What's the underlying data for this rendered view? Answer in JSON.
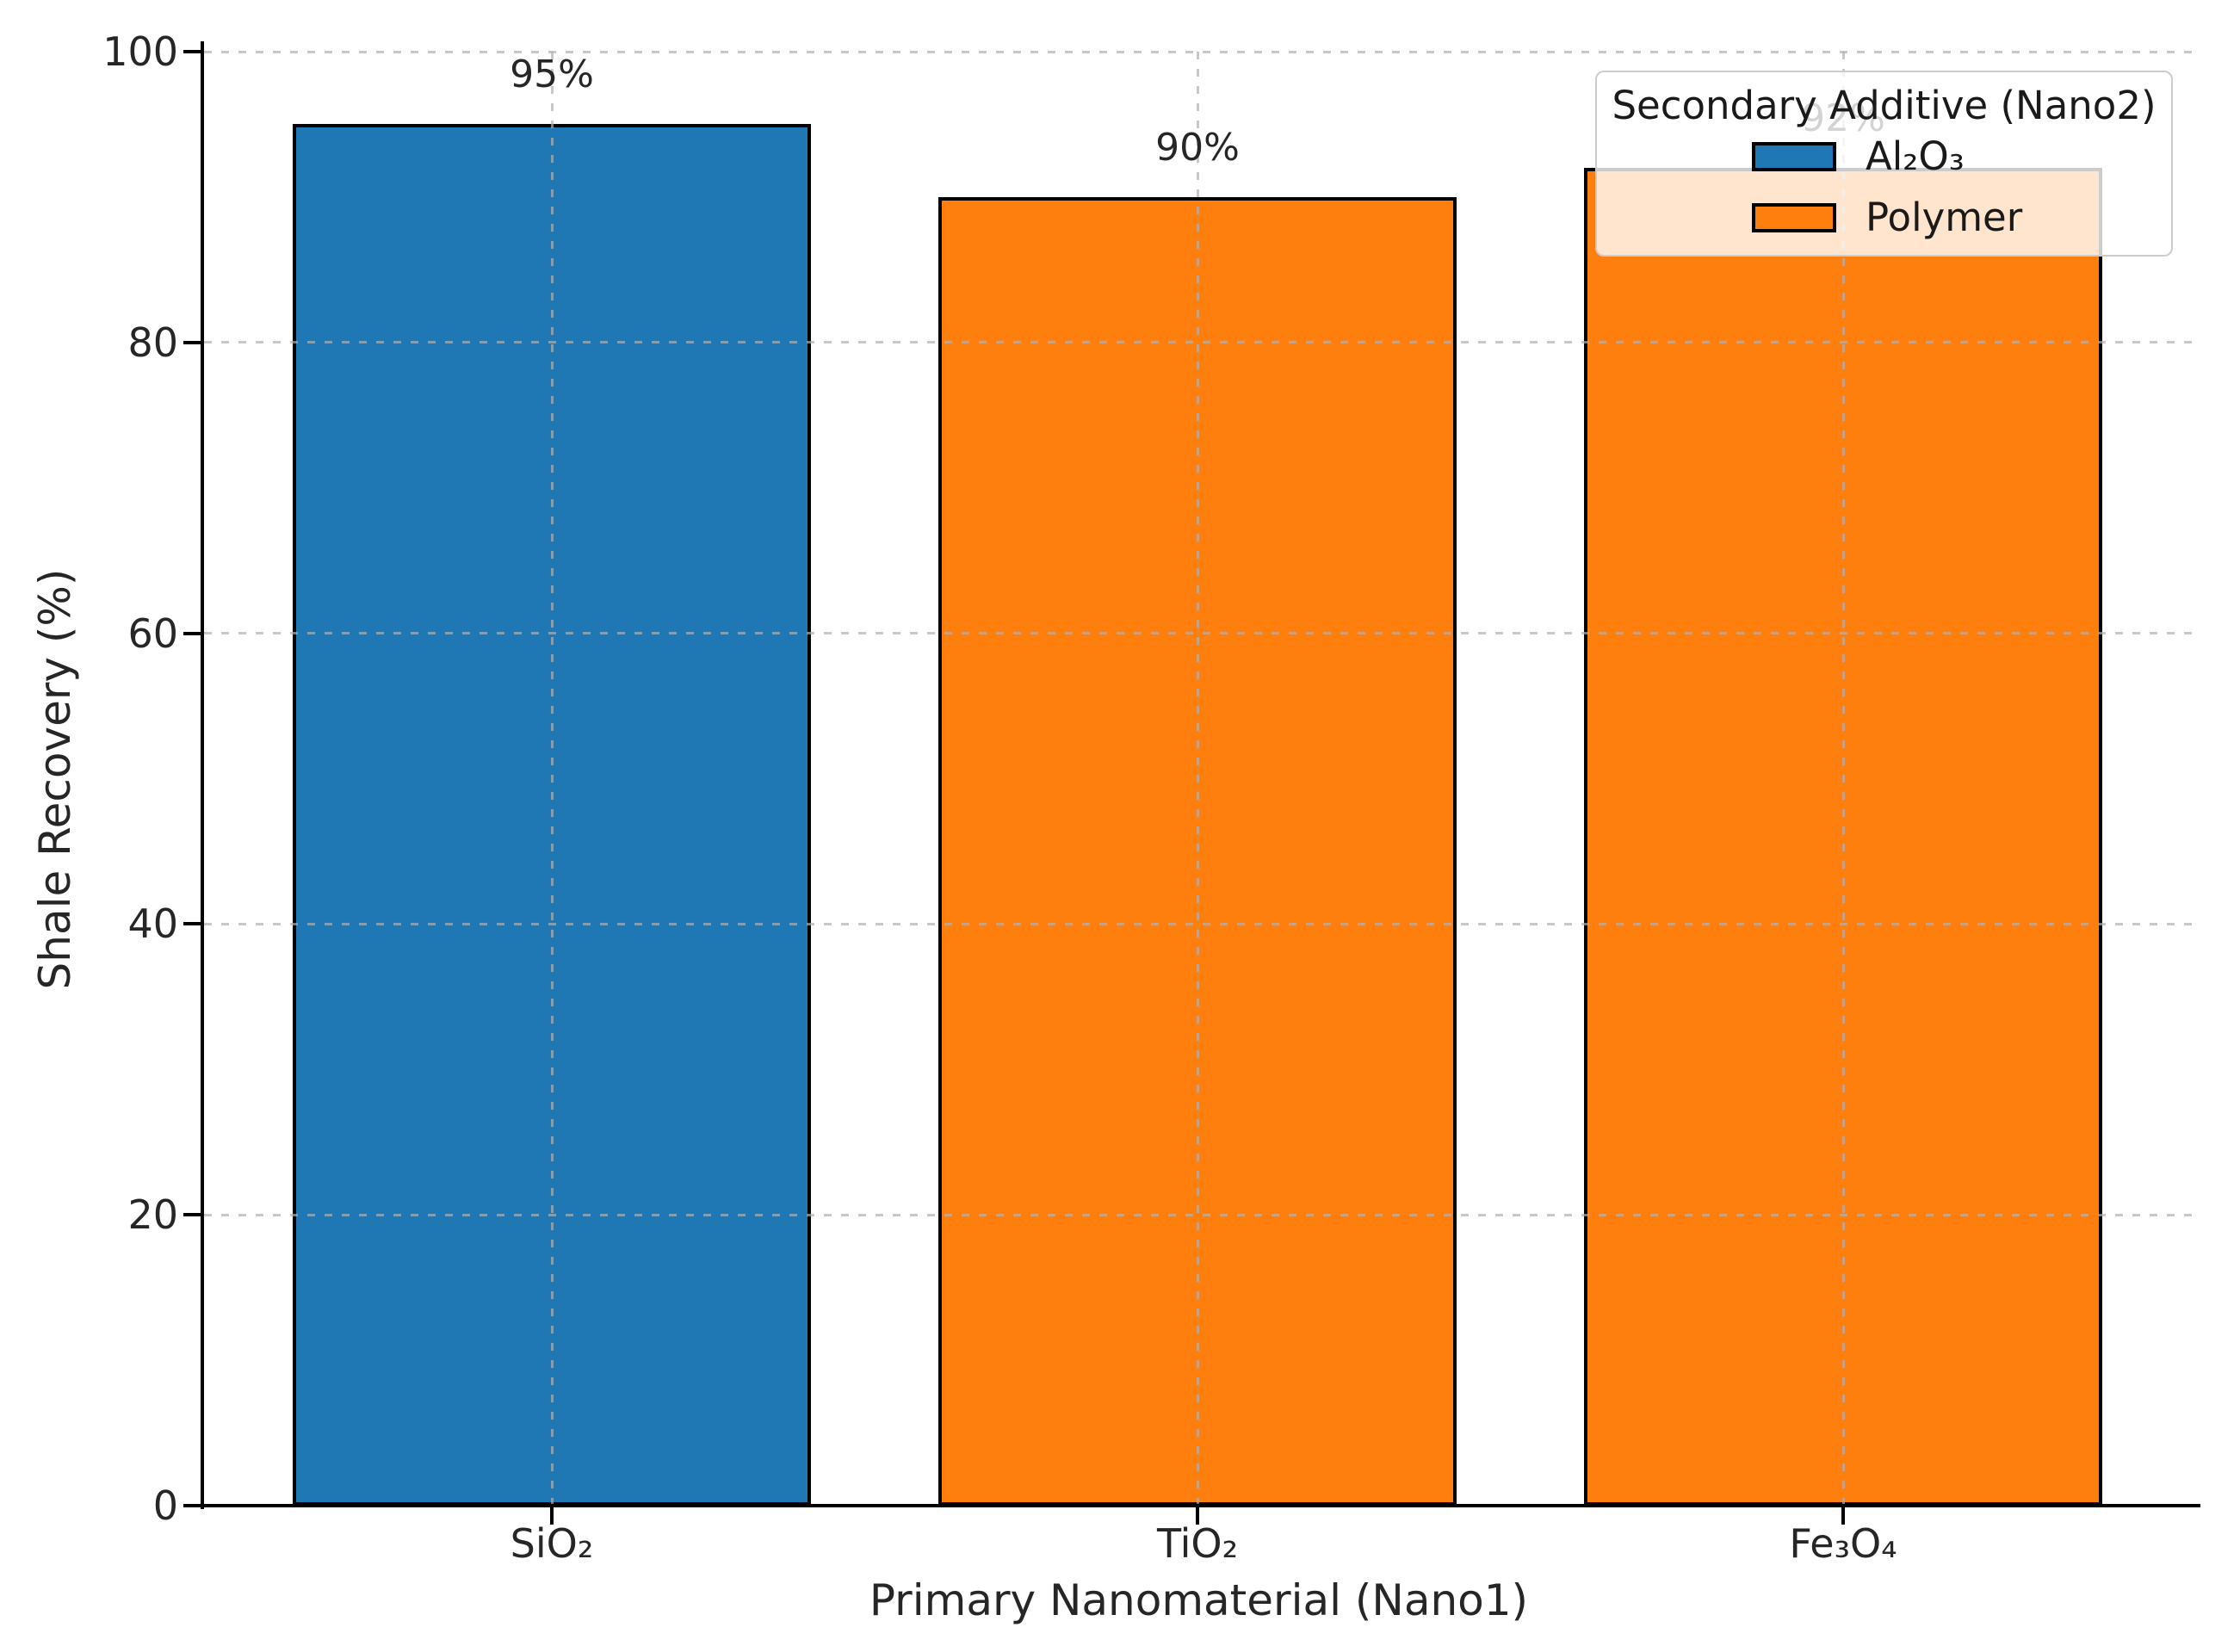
{
  "chart_data": {
    "type": "bar",
    "title": "",
    "categories": [
      "SiO₂",
      "TiO₂",
      "Fe₃O₄"
    ],
    "values": [
      95,
      90,
      92
    ],
    "bar_labels": [
      "95%",
      "90%",
      "92%"
    ],
    "bar_colors": [
      "#1f77b4",
      "#ff7f0e",
      "#ff7f0e"
    ],
    "bar_edge_color": "#000000",
    "xlabel": "Primary Nanomaterial (Nano1)",
    "ylabel": "Shale Recovery (%)",
    "ylim": [
      0,
      100
    ],
    "yticks": [
      0,
      20,
      40,
      60,
      80,
      100
    ],
    "grid": {
      "style": "dashed",
      "axes": "both",
      "color": "#b0b0b0",
      "alpha": 0.7,
      "above_bars": true
    },
    "legend": {
      "title": "Secondary Additive (Nano2)",
      "position": "upper right",
      "background": "rgba(255,255,255,0.8)",
      "border_color": "#cccccc",
      "entries": [
        {
          "label": "Al₂O₃",
          "color": "#1f77b4"
        },
        {
          "label": "Polymer",
          "color": "#ff7f0e"
        }
      ]
    }
  }
}
